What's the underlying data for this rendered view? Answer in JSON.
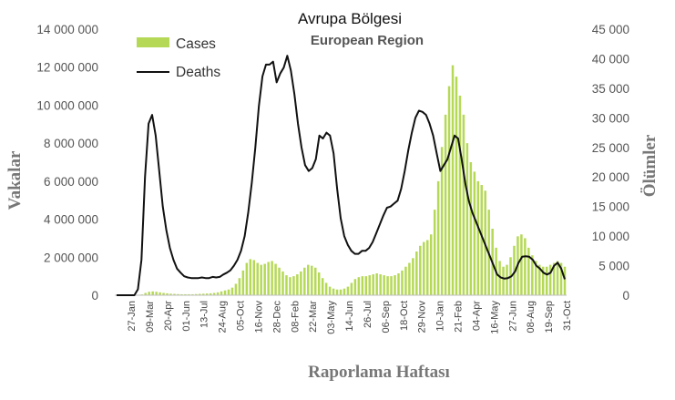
{
  "chart_data": {
    "type": "bar",
    "title": "Avrupa Bölgesi",
    "subtitle": "European Region",
    "xlabel": "Raporlama Haftası",
    "ylabel": "Vakalar",
    "y2label": "Ölümler",
    "ylim": [
      0,
      14000000
    ],
    "y2lim": [
      0,
      45000
    ],
    "y_ticks": [
      "0",
      "2 000 000",
      "4 000 000",
      "6 000 000",
      "8 000 000",
      "10 000 000",
      "12 000 000",
      "14 000 000"
    ],
    "y2_ticks": [
      "0",
      "5 000",
      "10 000",
      "15 000",
      "20 000",
      "25 000",
      "30 000",
      "35 000",
      "40 000",
      "45 000"
    ],
    "x_ticks": [
      "27-Jan",
      "09-Mar",
      "20-Apr",
      "01-Jun",
      "13-Jul",
      "24-Aug",
      "05-Oct",
      "16-Nov",
      "28-Dec",
      "08-Feb",
      "22-Mar",
      "03-May",
      "14-Jun",
      "26-Jul",
      "06-Sep",
      "18-Oct",
      "29-Nov",
      "10-Jan",
      "21-Feb",
      "04-Apr",
      "16-May",
      "27-Jun",
      "08-Aug",
      "19-Sep",
      "31-Oct"
    ],
    "legend_position": "top-left",
    "grid": false,
    "series": [
      {
        "name": "Cases",
        "type": "bar",
        "axis": "left",
        "color": "#b5d957",
        "values": [
          0,
          0,
          0,
          0,
          0,
          0,
          10000,
          40000,
          120000,
          180000,
          200000,
          180000,
          150000,
          120000,
          100000,
          80000,
          70000,
          60000,
          50000,
          50000,
          50000,
          50000,
          60000,
          70000,
          80000,
          90000,
          100000,
          120000,
          150000,
          200000,
          250000,
          300000,
          400000,
          600000,
          900000,
          1300000,
          1700000,
          1900000,
          1850000,
          1700000,
          1600000,
          1650000,
          1750000,
          1800000,
          1650000,
          1450000,
          1250000,
          1050000,
          950000,
          1000000,
          1100000,
          1250000,
          1450000,
          1600000,
          1550000,
          1450000,
          1200000,
          900000,
          650000,
          450000,
          350000,
          300000,
          300000,
          350000,
          450000,
          650000,
          850000,
          950000,
          1000000,
          1000000,
          1050000,
          1100000,
          1150000,
          1100000,
          1050000,
          1000000,
          1000000,
          1050000,
          1150000,
          1300000,
          1500000,
          1700000,
          1950000,
          2300000,
          2600000,
          2800000,
          2900000,
          3200000,
          4500000,
          6000000,
          7800000,
          9500000,
          11000000,
          12100000,
          11500000,
          10500000,
          9500000,
          8000000,
          7000000,
          6500000,
          6000000,
          5800000,
          5500000,
          4500000,
          3500000,
          2500000,
          1800000,
          1500000,
          1600000,
          2000000,
          2600000,
          3100000,
          3200000,
          3000000,
          2500000,
          2100000,
          1800000,
          1600000,
          1500000,
          1500000,
          1600000,
          1700000,
          1800000,
          1700000,
          1500000
        ]
      },
      {
        "name": "Deaths",
        "type": "line",
        "axis": "right",
        "color": "#111111",
        "values": [
          0,
          0,
          0,
          0,
          0,
          0,
          1000,
          6000,
          20000,
          29000,
          30500,
          27000,
          21000,
          15000,
          11000,
          8000,
          6000,
          4500,
          3800,
          3200,
          3000,
          2900,
          2900,
          2900,
          3000,
          2900,
          2900,
          3100,
          3000,
          3100,
          3500,
          3800,
          4200,
          5000,
          6000,
          7500,
          10000,
          14000,
          19000,
          25000,
          32000,
          37000,
          39000,
          39000,
          39500,
          36000,
          37500,
          38500,
          40500,
          38000,
          34000,
          29000,
          25000,
          22000,
          21000,
          21500,
          23000,
          27000,
          26500,
          27500,
          27000,
          24000,
          18000,
          13000,
          10000,
          8500,
          7500,
          7000,
          7000,
          7500,
          7500,
          8000,
          9000,
          10500,
          12000,
          13500,
          14800,
          15000,
          15500,
          16000,
          18000,
          21000,
          24500,
          27500,
          30000,
          31200,
          31000,
          30500,
          29000,
          27000,
          24000,
          21000,
          22000,
          23000,
          25000,
          27000,
          26500,
          23000,
          19000,
          16000,
          14000,
          12500,
          11000,
          9500,
          8000,
          6500,
          5000,
          3500,
          3000,
          2800,
          2900,
          3200,
          4000,
          5500,
          6500,
          6600,
          6500,
          6000,
          5000,
          4500,
          3800,
          3500,
          3800,
          5000,
          5500,
          4500,
          2700
        ]
      }
    ]
  }
}
